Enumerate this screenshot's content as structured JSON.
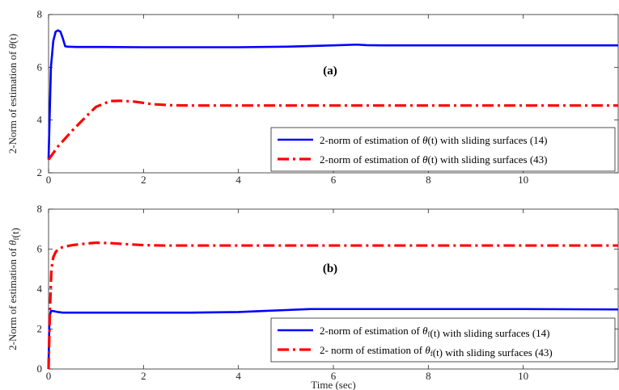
{
  "chart_data": [
    {
      "type": "line",
      "panel_label": "(a)",
      "xlabel": "",
      "ylabel": "2-Norm of estimation of θ(t)",
      "xlim": [
        0,
        12
      ],
      "ylim": [
        2,
        8
      ],
      "xticks": [
        "0",
        "2",
        "4",
        "6",
        "8",
        "10"
      ],
      "yticks": [
        "2",
        "4",
        "6",
        "8"
      ],
      "legend_placement": "bottom-right",
      "series": [
        {
          "name": "2-norm of estimation of θ(t) with sliding surfaces (14)",
          "color": "#0000ff",
          "style": "solid",
          "x": [
            0,
            0.05,
            0.1,
            0.15,
            0.2,
            0.25,
            0.3,
            0.35,
            0.4,
            0.6,
            1.0,
            2.0,
            3.0,
            4.0,
            5.0,
            6.0,
            6.5,
            6.7,
            7.0,
            8.0,
            10.0,
            12.0
          ],
          "y": [
            2.5,
            6.0,
            7.0,
            7.35,
            7.4,
            7.35,
            7.1,
            6.8,
            6.78,
            6.77,
            6.77,
            6.76,
            6.76,
            6.76,
            6.78,
            6.83,
            6.86,
            6.84,
            6.83,
            6.83,
            6.83,
            6.83
          ]
        },
        {
          "name": "2-norm of estimation of θ(t) with sliding surfaces (43)",
          "color": "#ff0000",
          "style": "dashdot",
          "x": [
            0,
            0.2,
            0.5,
            0.8,
            1.0,
            1.3,
            1.5,
            1.8,
            2.2,
            2.6,
            3.0,
            4.0,
            6.0,
            8.0,
            10.0,
            12.0
          ],
          "y": [
            2.5,
            3.0,
            3.6,
            4.15,
            4.5,
            4.72,
            4.73,
            4.7,
            4.6,
            4.56,
            4.55,
            4.55,
            4.55,
            4.55,
            4.55,
            4.55
          ]
        }
      ]
    },
    {
      "type": "line",
      "panel_label": "(b)",
      "xlabel": "Time (sec)",
      "ylabel": "2-Norm of estimation of θf(t)",
      "xlim": [
        0,
        12
      ],
      "ylim": [
        0,
        8
      ],
      "xticks": [
        "0",
        "2",
        "4",
        "6",
        "8",
        "10"
      ],
      "yticks": [
        "0",
        "2",
        "4",
        "6",
        "8"
      ],
      "legend_placement": "bottom-right",
      "series": [
        {
          "name": "2-norm of estimation of θf(t) with sliding surfaces (14)",
          "color": "#0000ff",
          "style": "solid",
          "x": [
            0,
            0.02,
            0.05,
            0.1,
            0.2,
            0.3,
            1.0,
            2.0,
            3.0,
            4.0,
            4.5,
            5.0,
            5.5,
            6.0,
            8.0,
            10.0,
            11.0,
            12.0
          ],
          "y": [
            0.2,
            2.6,
            2.9,
            2.9,
            2.85,
            2.82,
            2.82,
            2.82,
            2.82,
            2.85,
            2.9,
            2.95,
            3.0,
            3.0,
            3.0,
            3.0,
            2.99,
            2.98
          ]
        },
        {
          "name": "2- norm of estimation of θf(t) with sliding surfaces (43)",
          "color": "#ff0000",
          "style": "dashdot",
          "x": [
            0,
            0.03,
            0.06,
            0.1,
            0.15,
            0.2,
            0.3,
            0.5,
            0.8,
            1.0,
            1.3,
            1.6,
            2.0,
            2.4,
            3.0,
            4.0,
            6.0,
            8.0,
            10.0,
            12.0
          ],
          "y": [
            0,
            3.0,
            5.0,
            5.6,
            5.85,
            6.0,
            6.1,
            6.2,
            6.28,
            6.32,
            6.3,
            6.25,
            6.2,
            6.18,
            6.18,
            6.18,
            6.18,
            6.18,
            6.18,
            6.18
          ]
        }
      ]
    }
  ]
}
